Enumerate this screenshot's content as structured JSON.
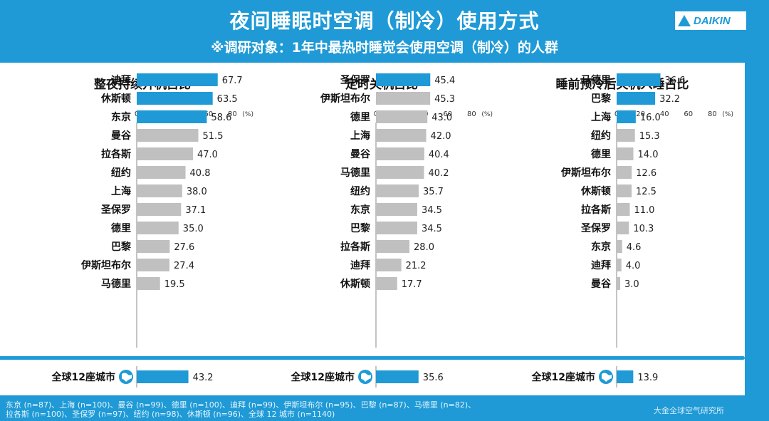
{
  "header": {
    "title": "夜间睡眠时空调（制冷）使用方式",
    "subtitle": "※调研对象：1年中最热时睡觉会使用空调（制冷）的人群",
    "logo_text": "DAIKIN"
  },
  "colors": {
    "background": "#1f9ad6",
    "highlight_bar": "#1f9ad6",
    "normal_bar": "#c0c0c0",
    "panel": "#ffffff"
  },
  "chart_data": [
    {
      "type": "bar",
      "title": "整夜持续开机占比",
      "unit": "(%)",
      "ticks": [
        "0",
        "20",
        "40",
        "60",
        "80"
      ],
      "xlim": [
        0,
        80
      ],
      "categories": [
        "迪拜",
        "休斯顿",
        "东京",
        "曼谷",
        "拉各斯",
        "纽约",
        "上海",
        "圣保罗",
        "德里",
        "巴黎",
        "伊斯坦布尔",
        "马德里"
      ],
      "values": [
        67.7,
        63.5,
        58.6,
        51.5,
        47.0,
        40.8,
        38.0,
        37.1,
        35.0,
        27.6,
        27.4,
        19.5
      ],
      "highlight_count": 3,
      "total_label": "全球12座城市",
      "total_value": 43.2
    },
    {
      "type": "bar",
      "title": "定时关机占比",
      "unit": "(%)",
      "ticks": [
        "0",
        "20",
        "40",
        "60",
        "80"
      ],
      "xlim": [
        0,
        80
      ],
      "categories": [
        "圣保罗",
        "伊斯坦布尔",
        "德里",
        "上海",
        "曼谷",
        "马德里",
        "纽约",
        "东京",
        "巴黎",
        "拉各斯",
        "迪拜",
        "休斯顿"
      ],
      "values": [
        45.4,
        45.3,
        43.0,
        42.0,
        40.4,
        40.2,
        35.7,
        34.5,
        34.5,
        28.0,
        21.2,
        17.7
      ],
      "highlight_count": 1,
      "total_label": "全球12座城市",
      "total_value": 35.6
    },
    {
      "type": "bar",
      "title": "睡前预冷后关机入睡占比",
      "unit": "(%)",
      "ticks": [
        "0",
        "20",
        "40",
        "60",
        "80"
      ],
      "xlim": [
        0,
        80
      ],
      "categories": [
        "马德里",
        "巴黎",
        "上海",
        "纽约",
        "德里",
        "伊斯坦布尔",
        "休斯顿",
        "拉各斯",
        "圣保罗",
        "东京",
        "迪拜",
        "曼谷"
      ],
      "values": [
        36.6,
        32.2,
        16.0,
        15.3,
        14.0,
        12.6,
        12.5,
        11.0,
        10.3,
        4.6,
        4.0,
        3.0
      ],
      "highlight_count": 3,
      "total_label": "全球12座城市",
      "total_value": 13.9
    }
  ],
  "footnote": {
    "line1": "东京 (n=87)、上海 (n=100)、曼谷 (n=99)、德里 (n=100)、迪拜 (n=99)、伊斯坦布尔 (n=95)、巴黎 (n=87)、马德里 (n=82)、",
    "line2": "拉各斯 (n=100)、圣保罗 (n=97)、纽约 (n=98)、休斯顿 (n=96)、全球 12 城市 (n=1140)"
  },
  "watermark": "大金全球空气研究所"
}
